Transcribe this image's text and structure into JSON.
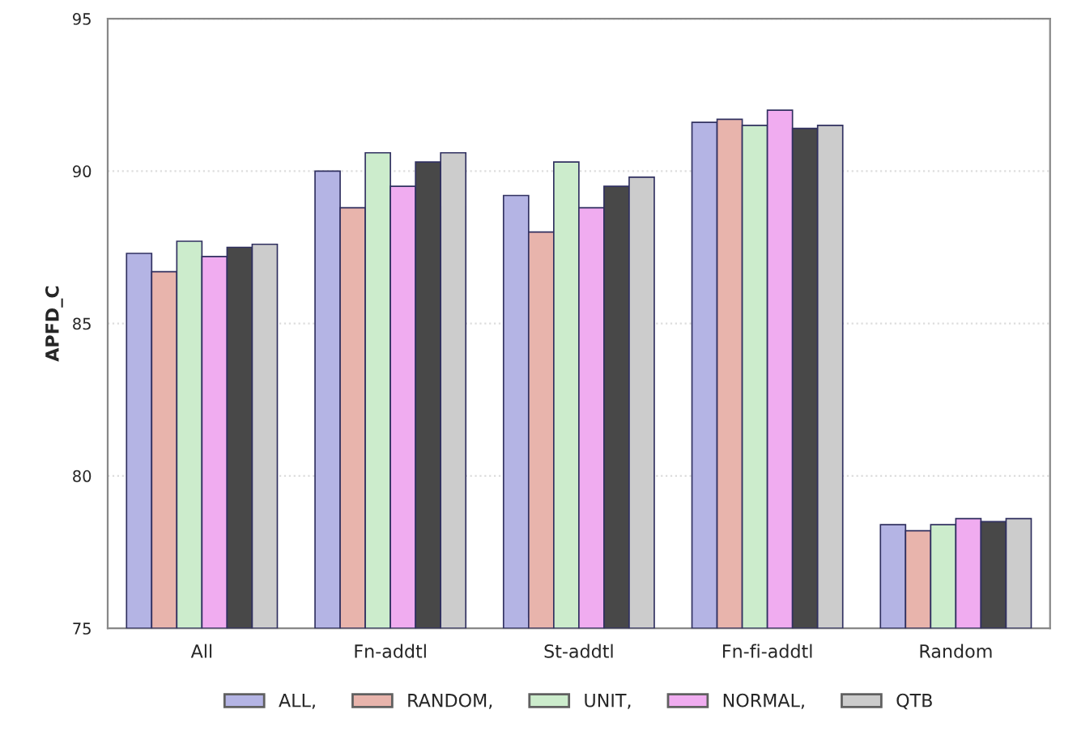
{
  "chart_data": {
    "type": "bar",
    "ylabel": "APFD_C",
    "categories": [
      "All",
      "Fn-addtl",
      "St-addtl",
      "Fn-fi-addtl",
      "Random"
    ],
    "series": [
      {
        "name": "ALL,",
        "color": "#b4b4e4",
        "values": [
          87.3,
          90.0,
          89.2,
          91.6,
          78.4
        ]
      },
      {
        "name": "RANDOM,",
        "color": "#e8b4ac",
        "values": [
          86.7,
          88.8,
          88.0,
          91.7,
          78.2
        ]
      },
      {
        "name": "UNIT,",
        "color": "#cceccc",
        "values": [
          87.7,
          90.6,
          90.3,
          91.5,
          78.4
        ]
      },
      {
        "name": "NORMAL,",
        "color": "#f0acf0",
        "values": [
          87.2,
          89.5,
          88.8,
          92.0,
          78.6
        ]
      },
      {
        "color": "#484848",
        "values": [
          87.5,
          90.3,
          89.5,
          91.4,
          78.5
        ]
      },
      {
        "name": "QTB",
        "color": "#cccccc",
        "values": [
          87.6,
          90.6,
          89.8,
          91.5,
          78.6
        ]
      }
    ],
    "ylim": [
      75,
      95
    ],
    "yticks": [
      75,
      80,
      85,
      90,
      95
    ],
    "grid": "y",
    "legend": "bottom"
  }
}
